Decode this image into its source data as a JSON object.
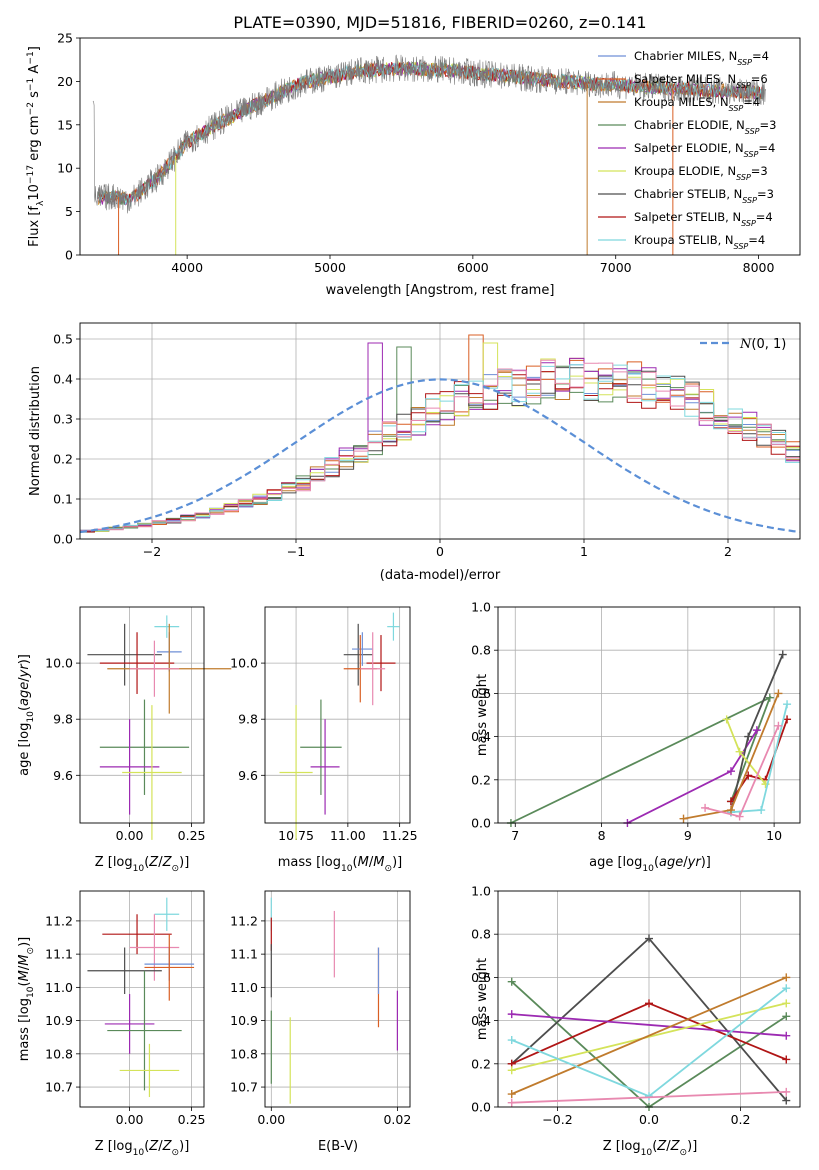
{
  "figure": {
    "title": "PLATE=0390, MJD=51816, FIBERID=0260, z=0.141"
  },
  "colors": {
    "chabrier_miles": "#6f8fd6",
    "salpeter_miles": "#d95f24",
    "kroupa_miles": "#c07b2d",
    "chabrier_elodie": "#5a8a5a",
    "salpeter_elodie": "#9c2ab2",
    "kroupa_elodie": "#d4e35a",
    "chabrier_stelib": "#4d4d4d",
    "salpeter_stelib": "#b01515",
    "kroupa_stelib": "#7fd8de",
    "pink": "#e889b0",
    "gauss": "#5b8fd6"
  },
  "chart_data": [
    {
      "id": "spectrum",
      "type": "line",
      "xlabel": "wavelength [Angstrom, rest frame]",
      "ylabel": "Flux [f_λ 10^-17 erg cm^-2 s^-1 A^-1]",
      "xlim": [
        3250,
        8290
      ],
      "ylim": [
        0,
        25
      ],
      "xticks": [
        4000,
        5000,
        6000,
        7000,
        8000
      ],
      "yticks": [
        0,
        5,
        10,
        15,
        20,
        25
      ],
      "grid": false,
      "legend_position": "right",
      "legend": [
        "Chabrier MILES, N_SSP=4",
        "Salpeter MILES, N_SSP=6",
        "Kroupa MILES, N_SSP=4",
        "Chabrier ELODIE, N_SSP=3",
        "Salpeter ELODIE, N_SSP=4",
        "Kroupa ELODIE, N_SSP=3",
        "Chabrier STELIB, N_SSP=3",
        "Salpeter STELIB, N_SSP=4",
        "Kroupa STELIB, N_SSP=4"
      ],
      "continuum": {
        "x": [
          3350,
          3500,
          3600,
          3800,
          4000,
          4200,
          4500,
          4800,
          5000,
          5200,
          5500,
          5800,
          6000,
          6300,
          6500,
          6800,
          7000,
          7300,
          7600,
          7900,
          8050
        ],
        "y": [
          6.5,
          6.8,
          6.3,
          9.0,
          13.0,
          15.0,
          17.5,
          19.8,
          20.5,
          21.2,
          21.5,
          21.3,
          21.0,
          20.5,
          20.2,
          19.8,
          19.6,
          19.3,
          19.0,
          18.8,
          18.6
        ]
      }
    },
    {
      "id": "residuals",
      "type": "histogram",
      "xlabel": "(data-model)/error",
      "ylabel": "Normed distribution",
      "xlim": [
        -2.5,
        2.5
      ],
      "ylim": [
        0,
        0.54
      ],
      "xticks": [
        -2,
        -1,
        0,
        1,
        2
      ],
      "yticks": [
        0.0,
        0.1,
        0.2,
        0.3,
        0.4,
        0.5
      ],
      "grid": true,
      "legend": [
        "N(0,1)"
      ],
      "legend_position": "top-right",
      "bin_width": 0.1,
      "bin_start": -2.5,
      "base": [
        0.02,
        0.022,
        0.026,
        0.03,
        0.035,
        0.04,
        0.046,
        0.053,
        0.06,
        0.068,
        0.078,
        0.09,
        0.1,
        0.11,
        0.125,
        0.14,
        0.16,
        0.18,
        0.2,
        0.22,
        0.24,
        0.26,
        0.28,
        0.3,
        0.32,
        0.33,
        0.35,
        0.36,
        0.37,
        0.38,
        0.385,
        0.39,
        0.4,
        0.39,
        0.4,
        0.4,
        0.39,
        0.39,
        0.39,
        0.38,
        0.37,
        0.36,
        0.35,
        0.33,
        0.31,
        0.3,
        0.28,
        0.26,
        0.24,
        0.22,
        0.21,
        0.19,
        0.17,
        0.16,
        0.14,
        0.13,
        0.11,
        0.1,
        0.085,
        0.075,
        0.065,
        0.055,
        0.05,
        0.045,
        0.04,
        0.035,
        0.03,
        0.028,
        0.025,
        0.023,
        0.02,
        0.02
      ],
      "peaks": [
        {
          "bin": 20,
          "value": 0.49,
          "series": "salpeter_elodie"
        },
        {
          "bin": 22,
          "value": 0.48,
          "series": "chabrier_elodie"
        },
        {
          "bin": 27,
          "value": 0.51,
          "series": "salpeter_miles"
        },
        {
          "bin": 28,
          "value": 0.49,
          "series": "kroupa_elodie"
        }
      ]
    },
    {
      "id": "age-vs-z",
      "type": "errorbar",
      "xlabel": "Z [log10(Z/Z⊙)]",
      "ylabel": "age [log10(age/yr)]",
      "xlim": [
        -0.2,
        0.3
      ],
      "ylim": [
        9.43,
        10.2
      ],
      "xticks": [
        0.0,
        0.25
      ],
      "yticks": [
        9.6,
        9.8,
        10.0
      ],
      "grid": true,
      "points": [
        {
          "series": "kroupa_stelib",
          "x": 0.15,
          "y": 10.13,
          "xerr": 0.05,
          "yerr": 0.04
        },
        {
          "series": "chabrier_miles",
          "x": 0.16,
          "y": 10.04,
          "xerr": 0.05,
          "yerr": 0.07
        },
        {
          "series": "chabrier_stelib",
          "x": -0.02,
          "y": 10.03,
          "xerr": 0.15,
          "yerr": 0.11
        },
        {
          "series": "salpeter_stelib",
          "x": 0.03,
          "y": 10.0,
          "xerr": 0.15,
          "yerr": 0.11
        },
        {
          "series": "kroupa_miles",
          "x": 0.16,
          "y": 9.98,
          "xerr": 0.25,
          "yerr": 0.16
        },
        {
          "series": "pink",
          "x": 0.1,
          "y": 9.98,
          "xerr": 0.1,
          "yerr": 0.1
        },
        {
          "series": "chabrier_elodie",
          "x": 0.06,
          "y": 9.7,
          "xerr": 0.18,
          "yerr": 0.17
        },
        {
          "series": "salpeter_elodie",
          "x": 0.0,
          "y": 9.63,
          "xerr": 0.12,
          "yerr": 0.17
        },
        {
          "series": "kroupa_elodie",
          "x": 0.09,
          "y": 9.61,
          "xerr": 0.12,
          "yerr": 0.24
        }
      ]
    },
    {
      "id": "age-vs-mass",
      "type": "errorbar",
      "xlabel": "mass [log10(M/M⊙)]",
      "ylabel": "",
      "xlim": [
        10.6,
        11.3
      ],
      "ylim": [
        9.43,
        10.2
      ],
      "xticks": [
        10.75,
        11.0,
        11.25
      ],
      "yticks": [
        9.6,
        9.8,
        10.0
      ],
      "grid": true,
      "points": [
        {
          "series": "kroupa_stelib",
          "x": 11.22,
          "y": 10.13,
          "xerr": 0.03,
          "yerr": 0.05
        },
        {
          "series": "chabrier_stelib",
          "x": 11.05,
          "y": 10.03,
          "xerr": 0.07,
          "yerr": 0.11
        },
        {
          "series": "chabrier_miles",
          "x": 11.07,
          "y": 10.05,
          "xerr": 0.05,
          "yerr": 0.06
        },
        {
          "series": "salpeter_stelib",
          "x": 11.16,
          "y": 10.0,
          "xerr": 0.07,
          "yerr": 0.1
        },
        {
          "series": "salpeter_miles",
          "x": 11.06,
          "y": 9.98,
          "xerr": 0.08,
          "yerr": 0.12
        },
        {
          "series": "pink",
          "x": 11.12,
          "y": 9.98,
          "xerr": 0.06,
          "yerr": 0.13
        },
        {
          "series": "chabrier_elodie",
          "x": 10.87,
          "y": 9.7,
          "xerr": 0.1,
          "yerr": 0.17
        },
        {
          "series": "salpeter_elodie",
          "x": 10.89,
          "y": 9.63,
          "xerr": 0.07,
          "yerr": 0.17
        },
        {
          "series": "kroupa_elodie",
          "x": 10.75,
          "y": 9.61,
          "xerr": 0.08,
          "yerr": 0.24
        }
      ]
    },
    {
      "id": "weight-vs-age",
      "type": "line",
      "xlabel": "age [log10(age/yr)]",
      "ylabel": "mass weight",
      "xlim": [
        6.8,
        10.3
      ],
      "ylim": [
        0,
        1
      ],
      "xticks": [
        7,
        8,
        9,
        10
      ],
      "yticks": [
        0.0,
        0.2,
        0.4,
        0.6,
        0.8,
        1.0
      ],
      "grid": true,
      "series": [
        {
          "series": "chabrier_elodie",
          "x": [
            6.95,
            9.95,
            9.5
          ],
          "y": [
            0.0,
            0.58,
            0.1
          ]
        },
        {
          "series": "salpeter_elodie",
          "x": [
            8.3,
            9.5,
            9.8
          ],
          "y": [
            0.0,
            0.24,
            0.43
          ]
        },
        {
          "series": "chabrier_stelib",
          "x": [
            9.5,
            9.7,
            10.1
          ],
          "y": [
            0.05,
            0.4,
            0.78
          ]
        },
        {
          "series": "salpeter_stelib",
          "x": [
            9.5,
            9.7,
            9.9,
            10.15
          ],
          "y": [
            0.1,
            0.22,
            0.2,
            0.48
          ]
        },
        {
          "series": "kroupa_elodie",
          "x": [
            9.45,
            9.6,
            9.9
          ],
          "y": [
            0.48,
            0.33,
            0.18
          ]
        },
        {
          "series": "kroupa_stelib",
          "x": [
            9.5,
            9.85,
            10.15
          ],
          "y": [
            0.05,
            0.06,
            0.55
          ]
        },
        {
          "series": "kroupa_miles",
          "x": [
            8.95,
            9.5,
            10.05
          ],
          "y": [
            0.02,
            0.06,
            0.6
          ]
        },
        {
          "series": "pink",
          "x": [
            9.2,
            9.6,
            10.05
          ],
          "y": [
            0.07,
            0.03,
            0.45
          ]
        }
      ]
    },
    {
      "id": "mass-vs-z",
      "type": "errorbar",
      "xlabel": "Z [log10(Z/Z⊙)]",
      "ylabel": "mass [log10(M/M⊙)]",
      "xlim": [
        -0.2,
        0.3
      ],
      "ylim": [
        10.64,
        11.29
      ],
      "xticks": [
        0.0,
        0.25
      ],
      "yticks": [
        10.7,
        10.8,
        10.9,
        11.0,
        11.1,
        11.2
      ],
      "grid": true,
      "points": [
        {
          "series": "kroupa_stelib",
          "x": 0.15,
          "y": 11.22,
          "xerr": 0.05,
          "yerr": 0.05
        },
        {
          "series": "salpeter_stelib",
          "x": 0.03,
          "y": 11.16,
          "xerr": 0.14,
          "yerr": 0.06
        },
        {
          "series": "pink",
          "x": 0.1,
          "y": 11.12,
          "xerr": 0.1,
          "yerr": 0.1
        },
        {
          "series": "chabrier_miles",
          "x": 0.16,
          "y": 11.07,
          "xerr": 0.1,
          "yerr": 0.05
        },
        {
          "series": "salpeter_miles",
          "x": 0.16,
          "y": 11.06,
          "xerr": 0.1,
          "yerr": 0.1
        },
        {
          "series": "chabrier_stelib",
          "x": -0.02,
          "y": 11.05,
          "xerr": 0.15,
          "yerr": 0.07
        },
        {
          "series": "salpeter_elodie",
          "x": 0.0,
          "y": 10.89,
          "xerr": 0.1,
          "yerr": 0.09
        },
        {
          "series": "chabrier_elodie",
          "x": 0.06,
          "y": 10.87,
          "xerr": 0.15,
          "yerr": 0.18
        },
        {
          "series": "kroupa_elodie",
          "x": 0.08,
          "y": 10.75,
          "xerr": 0.12,
          "yerr": 0.08
        }
      ]
    },
    {
      "id": "mass-vs-ebv",
      "type": "errorbar",
      "xlabel": "E(B-V)",
      "ylabel": "",
      "xlim": [
        -0.001,
        0.022
      ],
      "ylim": [
        10.64,
        11.29
      ],
      "xticks": [
        0.0,
        0.02
      ],
      "yticks": [
        10.7,
        10.8,
        10.9,
        11.0,
        11.1,
        11.2
      ],
      "grid": true,
      "points": [
        {
          "series": "kroupa_stelib",
          "x": 0.0,
          "y": 11.22,
          "xerr": 0,
          "yerr": 0.05
        },
        {
          "series": "salpeter_stelib",
          "x": 0.0,
          "y": 11.16,
          "xerr": 0,
          "yerr": 0.05
        },
        {
          "series": "pink",
          "x": 0.01,
          "y": 11.13,
          "xerr": 0,
          "yerr": 0.1
        },
        {
          "series": "salpeter_miles",
          "x": 0.017,
          "y": 11.0,
          "xerr": 0,
          "yerr": 0.12
        },
        {
          "series": "chabrier_miles",
          "x": 0.017,
          "y": 11.05,
          "xerr": 0,
          "yerr": 0.07
        },
        {
          "series": "chabrier_stelib",
          "x": 0.0,
          "y": 11.05,
          "xerr": 0,
          "yerr": 0.08
        },
        {
          "series": "salpeter_elodie",
          "x": 0.02,
          "y": 10.9,
          "xerr": 0,
          "yerr": 0.09
        },
        {
          "series": "chabrier_elodie",
          "x": 0.0,
          "y": 10.82,
          "xerr": 0,
          "yerr": 0.11
        },
        {
          "series": "kroupa_elodie",
          "x": 0.003,
          "y": 10.78,
          "xerr": 0,
          "yerr": 0.13
        }
      ]
    },
    {
      "id": "weight-vs-z",
      "type": "line",
      "xlabel": "Z [log10(Z/Z⊙)]",
      "ylabel": "mass weight",
      "xlim": [
        -0.33,
        0.33
      ],
      "ylim": [
        0,
        1
      ],
      "xticks": [
        -0.2,
        0.0,
        0.2
      ],
      "yticks": [
        0.0,
        0.2,
        0.4,
        0.6,
        0.8,
        1.0
      ],
      "grid": true,
      "series": [
        {
          "series": "chabrier_elodie",
          "x": [
            -0.3,
            0.0,
            0.3
          ],
          "y": [
            0.58,
            0.0,
            0.42
          ]
        },
        {
          "series": "chabrier_stelib",
          "x": [
            -0.3,
            0.0,
            0.3
          ],
          "y": [
            0.2,
            0.78,
            0.03
          ]
        },
        {
          "series": "salpeter_stelib",
          "x": [
            -0.3,
            0.0,
            0.3
          ],
          "y": [
            0.2,
            0.48,
            0.22
          ]
        },
        {
          "series": "salpeter_elodie",
          "x": [
            -0.3,
            0.3
          ],
          "y": [
            0.43,
            0.33
          ]
        },
        {
          "series": "kroupa_elodie",
          "x": [
            -0.3,
            0.3
          ],
          "y": [
            0.17,
            0.48
          ]
        },
        {
          "series": "kroupa_miles",
          "x": [
            -0.3,
            0.3
          ],
          "y": [
            0.06,
            0.6
          ]
        },
        {
          "series": "kroupa_stelib",
          "x": [
            -0.3,
            0.0,
            0.3
          ],
          "y": [
            0.31,
            0.05,
            0.55
          ]
        },
        {
          "series": "pink",
          "x": [
            -0.3,
            0.3
          ],
          "y": [
            0.02,
            0.07
          ]
        }
      ]
    }
  ]
}
